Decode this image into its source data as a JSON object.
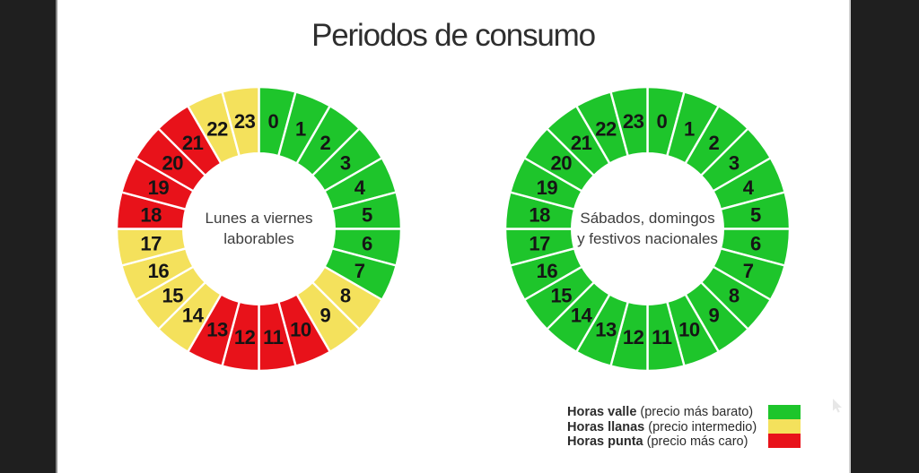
{
  "title": "Periodos de consumo",
  "colors": {
    "valle": "#1ec52b",
    "llana": "#f4e15c",
    "punta": "#e8121a",
    "segment_divider": "#ffffff",
    "letterbox": "#1f1f1f",
    "hour_label": "#151515"
  },
  "chart_data": [
    {
      "type": "donut-clock",
      "title": "Lunes a viernes laborables",
      "center_label_lines": [
        "Lunes a viernes",
        "laborables"
      ],
      "hours": [
        0,
        1,
        2,
        3,
        4,
        5,
        6,
        7,
        8,
        9,
        10,
        11,
        12,
        13,
        14,
        15,
        16,
        17,
        18,
        19,
        20,
        21,
        22,
        23
      ],
      "periods": [
        "valle",
        "valle",
        "valle",
        "valle",
        "valle",
        "valle",
        "valle",
        "valle",
        "llana",
        "llana",
        "punta",
        "punta",
        "punta",
        "punta",
        "llana",
        "llana",
        "llana",
        "llana",
        "punta",
        "punta",
        "punta",
        "punta",
        "llana",
        "llana"
      ]
    },
    {
      "type": "donut-clock",
      "title": "Sábados, domingos y festivos nacionales",
      "center_label_lines": [
        "Sábados, domingos",
        "y festivos nacionales"
      ],
      "hours": [
        0,
        1,
        2,
        3,
        4,
        5,
        6,
        7,
        8,
        9,
        10,
        11,
        12,
        13,
        14,
        15,
        16,
        17,
        18,
        19,
        20,
        21,
        22,
        23
      ],
      "periods": [
        "valle",
        "valle",
        "valle",
        "valle",
        "valle",
        "valle",
        "valle",
        "valle",
        "valle",
        "valle",
        "valle",
        "valle",
        "valle",
        "valle",
        "valle",
        "valle",
        "valle",
        "valle",
        "valle",
        "valle",
        "valle",
        "valle",
        "valle",
        "valle"
      ]
    }
  ],
  "legend": {
    "items": [
      {
        "name": "Horas valle",
        "detail": " (precio más barato)",
        "period": "valle"
      },
      {
        "name": "Horas llanas",
        "detail": " (precio intermedio)",
        "period": "llana"
      },
      {
        "name": "Horas punta",
        "detail": " (precio más caro)",
        "period": "punta"
      }
    ]
  }
}
